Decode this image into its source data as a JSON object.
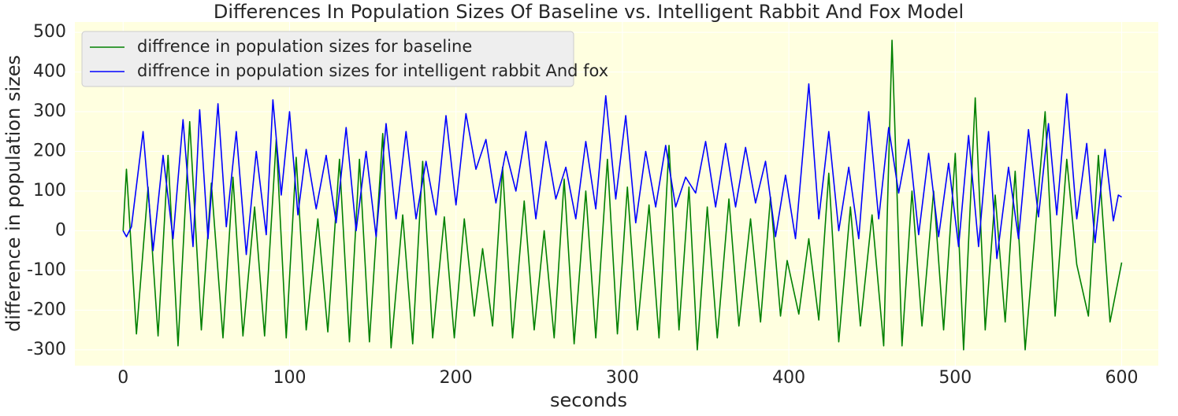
{
  "chart_data": {
    "type": "line",
    "title": "Differences In Population Sizes Of Baseline vs. Intelligent Rabbit And Fox Model",
    "xlabel": "seconds",
    "ylabel": "difference in population sizes",
    "xlim": [
      -29,
      622
    ],
    "ylim": [
      -340,
      526
    ],
    "xticks": [
      0,
      100,
      200,
      300,
      400,
      500,
      600
    ],
    "yticks": [
      -300,
      -200,
      -100,
      0,
      100,
      200,
      300,
      400,
      500
    ],
    "grid": true,
    "legend": "upper left",
    "series": [
      {
        "name": "diffrence in population sizes for baseline",
        "color": "#008000",
        "x": [
          0,
          2,
          8,
          15,
          21,
          27,
          33,
          40,
          47,
          53,
          60,
          66,
          72,
          79,
          85,
          92,
          98,
          104,
          110,
          117,
          123,
          130,
          136,
          142,
          148,
          156,
          161,
          168,
          174,
          180,
          186,
          193,
          199,
          205,
          211,
          216,
          222,
          228,
          234,
          241,
          247,
          253,
          259,
          265,
          271,
          278,
          284,
          291,
          297,
          303,
          309,
          316,
          322,
          328,
          334,
          340,
          345,
          351,
          357,
          364,
          370,
          377,
          383,
          389,
          395,
          399,
          406,
          412,
          418,
          424,
          430,
          437,
          443,
          450,
          457,
          462,
          468,
          474,
          480,
          487,
          493,
          500,
          505,
          512,
          518,
          524,
          530,
          536,
          542,
          554,
          560,
          567,
          573,
          580,
          586,
          593,
          600
        ],
        "values": [
          0,
          155,
          -260,
          110,
          -265,
          190,
          -290,
          275,
          -250,
          120,
          -270,
          135,
          -265,
          60,
          -265,
          230,
          -270,
          185,
          -250,
          30,
          -255,
          180,
          -280,
          180,
          -280,
          245,
          -295,
          40,
          -285,
          175,
          -270,
          35,
          -270,
          30,
          -215,
          -45,
          -240,
          160,
          -270,
          75,
          -250,
          0,
          -270,
          130,
          -285,
          100,
          -270,
          180,
          -260,
          110,
          -250,
          65,
          -270,
          215,
          -250,
          110,
          -300,
          60,
          -270,
          80,
          -240,
          30,
          -230,
          85,
          -215,
          -75,
          -210,
          -20,
          -225,
          145,
          -280,
          60,
          -240,
          40,
          -290,
          480,
          -290,
          100,
          -240,
          100,
          -250,
          195,
          -300,
          335,
          -250,
          90,
          -230,
          150,
          -300,
          300,
          -215,
          180,
          -85,
          -215,
          190,
          -230,
          -80
        ]
      },
      {
        "name": "diffrence in population sizes for intelligent rabbit And fox",
        "color": "#0000ff",
        "x": [
          0,
          2,
          5,
          12,
          18,
          24,
          30,
          36,
          42,
          46,
          51,
          57,
          62,
          68,
          74,
          80,
          86,
          90,
          95,
          100,
          105,
          110,
          116,
          122,
          128,
          134,
          140,
          146,
          152,
          158,
          164,
          170,
          176,
          182,
          188,
          194,
          200,
          206,
          212,
          218,
          224,
          230,
          236,
          242,
          248,
          254,
          260,
          266,
          272,
          278,
          284,
          290,
          296,
          302,
          308,
          314,
          320,
          326,
          332,
          338,
          344,
          350,
          356,
          362,
          368,
          374,
          380,
          386,
          392,
          398,
          404,
          412,
          418,
          424,
          430,
          436,
          442,
          448,
          454,
          460,
          466,
          472,
          478,
          484,
          490,
          496,
          502,
          508,
          514,
          520,
          525,
          532,
          538,
          544,
          550,
          556,
          561,
          567,
          573,
          579,
          584,
          590,
          595,
          598,
          600
        ],
        "values": [
          0,
          -15,
          10,
          250,
          -50,
          190,
          -20,
          280,
          -40,
          305,
          -20,
          320,
          10,
          250,
          -60,
          200,
          -10,
          330,
          90,
          300,
          40,
          205,
          55,
          190,
          20,
          260,
          0,
          200,
          -15,
          270,
          30,
          250,
          30,
          175,
          40,
          290,
          65,
          295,
          155,
          230,
          70,
          200,
          100,
          250,
          30,
          225,
          80,
          160,
          30,
          225,
          55,
          340,
          80,
          290,
          20,
          200,
          60,
          215,
          60,
          135,
          95,
          225,
          60,
          220,
          60,
          210,
          70,
          175,
          -15,
          140,
          -20,
          370,
          30,
          250,
          0,
          160,
          -20,
          300,
          30,
          260,
          95,
          230,
          -10,
          195,
          -15,
          170,
          -40,
          240,
          -40,
          250,
          -70,
          160,
          -20,
          255,
          35,
          270,
          40,
          345,
          30,
          220,
          -30,
          205,
          25,
          90,
          85
        ]
      }
    ]
  }
}
